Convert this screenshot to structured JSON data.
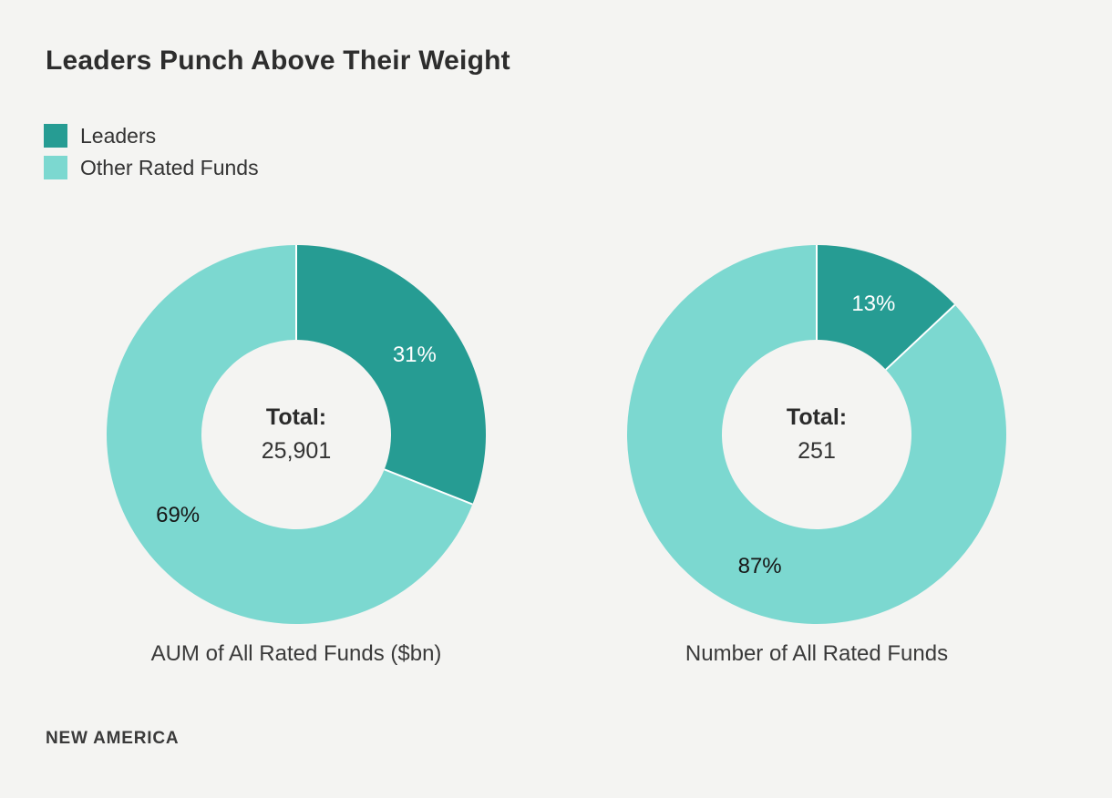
{
  "page": {
    "title": "Leaders Punch Above Their Weight",
    "source": "NEW AMERICA",
    "background_color": "#f4f4f2"
  },
  "colors": {
    "leaders": "#269c93",
    "other_rated_funds": "#7cd8d0",
    "slice_separator": "#ffffff"
  },
  "legend": {
    "items": [
      {
        "label": "Leaders",
        "color": "#269c93"
      },
      {
        "label": "Other Rated Funds",
        "color": "#7cd8d0"
      }
    ]
  },
  "chart_data": [
    {
      "type": "pie",
      "subtype": "donut",
      "title": "AUM of All Rated Funds ($bn)",
      "center_label": "Total:",
      "center_value": "25,901",
      "start_angle_deg": 0,
      "direction": "clockwise",
      "slices": [
        {
          "name": "Leaders",
          "percent": 31,
          "color": "#269c93",
          "label": "31%",
          "label_color": "#ffffff"
        },
        {
          "name": "Other Rated Funds",
          "percent": 69,
          "color": "#7cd8d0",
          "label": "69%",
          "label_color": "#161616"
        }
      ]
    },
    {
      "type": "pie",
      "subtype": "donut",
      "title": "Number of All Rated Funds",
      "center_label": "Total:",
      "center_value": "251",
      "start_angle_deg": 0,
      "direction": "clockwise",
      "slices": [
        {
          "name": "Leaders",
          "percent": 13,
          "color": "#269c93",
          "label": "13%",
          "label_color": "#ffffff"
        },
        {
          "name": "Other Rated Funds",
          "percent": 87,
          "color": "#7cd8d0",
          "label": "87%",
          "label_color": "#161616"
        }
      ]
    }
  ]
}
